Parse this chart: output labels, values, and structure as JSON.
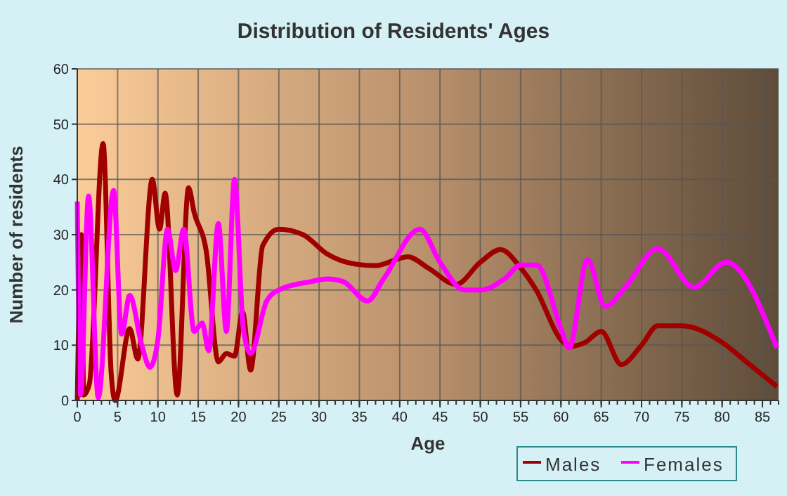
{
  "chart_data": {
    "type": "line",
    "title": "Distribution of Residents' Ages",
    "xlabel": "Age",
    "ylabel": "Number of residents",
    "xlim": [
      0,
      87
    ],
    "xticks": [
      0,
      5,
      10,
      15,
      20,
      25,
      30,
      35,
      40,
      45,
      50,
      55,
      60,
      65,
      70,
      75,
      80,
      85
    ],
    "ylim": [
      0,
      60
    ],
    "yticks": [
      0,
      10,
      20,
      30,
      40,
      50,
      60
    ],
    "grid": true,
    "legend": "bottom",
    "line_style": "solid",
    "series": [
      {
        "name": "Males",
        "color": "#a00000",
        "x": [
          0,
          0.5,
          0.8,
          1.5,
          3.2,
          4.2,
          4.7,
          6.5,
          7.5,
          9.3,
          10.2,
          10.9,
          12.4,
          13.8,
          14.5,
          16,
          17.5,
          18.5,
          19.5,
          20.5,
          21.5,
          23,
          25,
          28,
          31,
          34,
          37,
          41,
          43.5,
          47,
          50,
          52.5,
          55,
          57,
          60,
          61.3,
          63,
          65,
          67.5,
          70,
          72,
          75,
          80,
          83,
          86.8
        ],
        "values": [
          0,
          30,
          1,
          3,
          46.5,
          5,
          0,
          13,
          7.5,
          40,
          31,
          37.5,
          1,
          38.5,
          34,
          27,
          7,
          8.5,
          8,
          16,
          5.5,
          28,
          31,
          30,
          26.5,
          24.8,
          24.4,
          26,
          24,
          21,
          25,
          27.3,
          24,
          19.8,
          11,
          9.8,
          10.5,
          12.5,
          6.5,
          10,
          13.5,
          13.5,
          10.5,
          7,
          2.5
        ]
      },
      {
        "name": "Females",
        "color": "#ff00ff",
        "x": [
          0,
          0.4,
          1.4,
          2.6,
          4.5,
          5.5,
          6.5,
          8,
          9,
          10,
          11.2,
          12.2,
          13.2,
          14.5,
          15.5,
          16.3,
          17.5,
          18.5,
          19.5,
          20.6,
          21.5,
          23.5,
          25,
          29,
          31,
          33,
          36,
          38,
          42.5,
          45,
          48,
          50,
          53,
          55,
          57,
          60,
          61,
          63.3,
          65.5,
          68,
          72,
          76.5,
          80.5,
          86.8
        ],
        "values": [
          36,
          1,
          37,
          0.5,
          38,
          12,
          19,
          10,
          6,
          11,
          31,
          23.5,
          31,
          12.5,
          14,
          9,
          32,
          12.5,
          40,
          13,
          8.5,
          18,
          20,
          21.5,
          22,
          21.5,
          18,
          22,
          31,
          25,
          20,
          20,
          22,
          24.5,
          24.5,
          13,
          9.5,
          25.5,
          17,
          20.5,
          27.5,
          20.5,
          25,
          9.5
        ]
      }
    ]
  }
}
